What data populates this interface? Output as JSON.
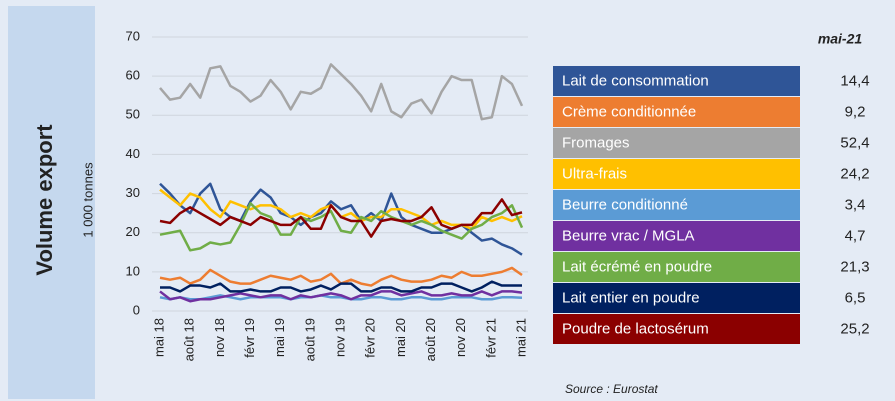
{
  "chart_data": {
    "type": "line",
    "title": "Volume export",
    "y_label": "1 000 tonnes",
    "table_header": "mai-21",
    "source": "Source : Eurostat",
    "categories": [
      "mai 18",
      null,
      null,
      "août 18",
      null,
      null,
      "nov 18",
      null,
      null,
      "févr 19",
      null,
      null,
      "mai 19",
      null,
      null,
      "août 19",
      null,
      null,
      "nov 19",
      null,
      null,
      "févr 20",
      null,
      null,
      "mai 20",
      null,
      null,
      "août 20",
      null,
      null,
      "nov 20",
      null,
      null,
      "févr 21",
      null,
      null,
      "mai 21"
    ],
    "ylim": [
      0,
      70
    ],
    "yticks": [
      0,
      10,
      20,
      30,
      40,
      50,
      60,
      70
    ],
    "grid": true,
    "series": [
      {
        "name": "Lait de consommation",
        "color": "#2f5597",
        "table_value": "14,4",
        "values": [
          32.5,
          30,
          27,
          25,
          30,
          32.5,
          26,
          24,
          23,
          28,
          31,
          29,
          25,
          24,
          22,
          24,
          25,
          28,
          26,
          27,
          23,
          25,
          23,
          30,
          24,
          22,
          21,
          20,
          20,
          21,
          22,
          20,
          18,
          18.5,
          17,
          16,
          14.4
        ]
      },
      {
        "name": "Crème conditionnée",
        "color": "#ed7d31",
        "table_value": "9,2",
        "values": [
          8.5,
          8,
          8.5,
          7,
          8,
          10.5,
          9,
          7.5,
          7,
          7,
          8,
          9,
          8.5,
          8,
          9,
          7.5,
          8,
          9.5,
          7,
          8,
          7,
          6.5,
          8,
          9,
          8,
          7.5,
          7.5,
          8,
          9,
          8.5,
          10,
          9,
          9,
          9.5,
          10,
          11,
          9.2
        ]
      },
      {
        "name": "Fromages",
        "color": "#a5a5a5",
        "table_value": "52,4",
        "values": [
          57,
          54,
          54.5,
          58,
          54.5,
          62,
          62.5,
          57.5,
          56,
          53.5,
          55,
          59,
          56,
          51.5,
          56,
          55.5,
          57,
          63,
          60.5,
          58,
          55,
          51,
          58,
          51,
          49.5,
          53,
          54,
          50.5,
          56,
          60,
          59,
          59,
          49,
          49.5,
          60,
          58,
          52.4
        ]
      },
      {
        "name": "Ultra-frais",
        "color": "#ffc000",
        "table_value": "24,2",
        "values": [
          31,
          29,
          27,
          30,
          29,
          26,
          24,
          28,
          27,
          26,
          27,
          27,
          26,
          24,
          25,
          24,
          26,
          27,
          24,
          25,
          23,
          24,
          24,
          26,
          26,
          25,
          24,
          22,
          23,
          22,
          22,
          21,
          24,
          23,
          24,
          23,
          24.2
        ]
      },
      {
        "name": "Beurre conditionné",
        "color": "#5b9bd5",
        "table_value": "3,4",
        "values": [
          3.5,
          3,
          3.5,
          3,
          3,
          3.5,
          4,
          3.5,
          3,
          3.5,
          3.5,
          3.5,
          3.5,
          3,
          3.5,
          3.5,
          4,
          3.5,
          3.5,
          3,
          3,
          3.5,
          3.5,
          3,
          3,
          3.5,
          3.5,
          3,
          3,
          3.5,
          3.5,
          3.5,
          3,
          3,
          3.5,
          3.5,
          3.4
        ]
      },
      {
        "name": "Beurre vrac / MGLA",
        "color": "#7030a0",
        "table_value": "4,7",
        "values": [
          5,
          3,
          3.5,
          2.5,
          3,
          3,
          3.5,
          4,
          4.5,
          4,
          3.5,
          4,
          4,
          3,
          4,
          3.5,
          4,
          4.5,
          4,
          3,
          4,
          4,
          5,
          5,
          4,
          4.5,
          5,
          4,
          4,
          4.5,
          4,
          4,
          5,
          4,
          5,
          5,
          4.7
        ]
      },
      {
        "name": "Lait écrémé en poudre",
        "color": "#70ad47",
        "table_value": "21,3",
        "values": [
          19.5,
          20,
          20.5,
          15.5,
          16,
          17.5,
          17,
          17.5,
          22,
          27.5,
          25,
          24,
          19.5,
          19.5,
          24,
          23,
          24,
          25.5,
          20.5,
          20,
          24,
          23,
          25.5,
          24,
          23,
          22,
          23,
          22,
          20.5,
          19.5,
          18.5,
          21,
          22,
          24,
          25,
          27,
          21.3
        ]
      },
      {
        "name": "Lait entier en poudre",
        "color": "#002060",
        "table_value": "6,5",
        "values": [
          6,
          6,
          5,
          6.5,
          6.5,
          6,
          7,
          5,
          5,
          5.5,
          5,
          5,
          6,
          6,
          5,
          5.5,
          6.5,
          5.5,
          7,
          7,
          5,
          5,
          6,
          6,
          5,
          5,
          6,
          6,
          7,
          7,
          6,
          5,
          6,
          7.5,
          6.5,
          6.5,
          6.5
        ]
      },
      {
        "name": "Poudre de lactosérum",
        "color": "#8b0000",
        "table_value": "25,2",
        "values": [
          23,
          22.5,
          25,
          26.5,
          25,
          23.5,
          22,
          24,
          23,
          22,
          24,
          23,
          22,
          22,
          24,
          21,
          21,
          27,
          24,
          23,
          23,
          19,
          23,
          23.5,
          23,
          23,
          24,
          26.5,
          22,
          21,
          22,
          22,
          25,
          25,
          28.5,
          24.5,
          25.2
        ]
      }
    ]
  }
}
